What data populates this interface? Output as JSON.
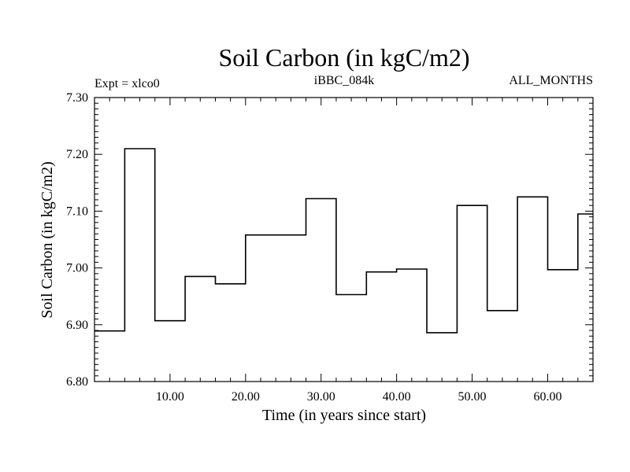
{
  "chart_data": {
    "type": "line",
    "step": true,
    "title": "Soil Carbon (in kgC/m2)",
    "subtitle_left": "Expt = xlco0",
    "subtitle_center": "iBBC_084k",
    "subtitle_right": "ALL_MONTHS",
    "xlabel": "Time (in years since start)",
    "ylabel": "Soil Carbon (in kgC/m2)",
    "xlim": [
      0,
      66
    ],
    "ylim": [
      6.8,
      7.3
    ],
    "xticks": [
      10,
      20,
      30,
      40,
      50,
      60
    ],
    "xtick_labels": [
      "10.00",
      "20.00",
      "30.00",
      "40.00",
      "50.00",
      "60.00"
    ],
    "yticks": [
      6.8,
      6.9,
      7.0,
      7.1,
      7.2,
      7.3
    ],
    "ytick_labels": [
      "6.80",
      "6.90",
      "7.00",
      "7.10",
      "7.20",
      "7.30"
    ],
    "grid": false,
    "series": [
      {
        "x": [
          1,
          5,
          9,
          13,
          17,
          21,
          25,
          29,
          33,
          37,
          41,
          45,
          49,
          53,
          57,
          61,
          65
        ],
        "values": [
          6.889,
          7.21,
          6.907,
          6.985,
          6.972,
          7.058,
          7.058,
          7.122,
          6.953,
          6.993,
          6.998,
          6.886,
          7.11,
          6.925,
          7.125,
          6.997,
          7.095
        ]
      }
    ]
  }
}
